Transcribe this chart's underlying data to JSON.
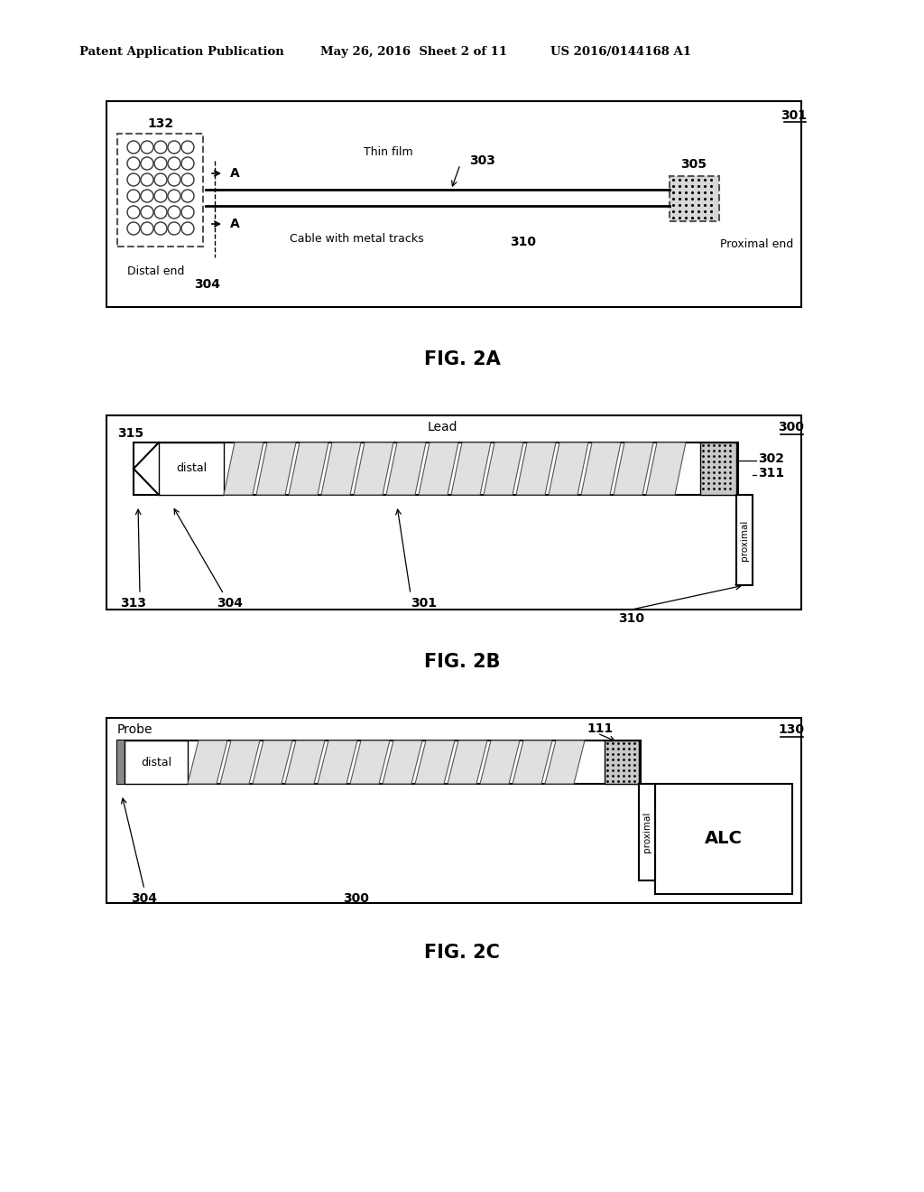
{
  "bg_color": "#ffffff",
  "header_left": "Patent Application Publication",
  "header_mid": "May 26, 2016  Sheet 2 of 11",
  "header_right": "US 2016/0144168 A1",
  "fig_2a_label": "FIG. 2A",
  "fig_2b_label": "FIG. 2B",
  "fig_2c_label": "FIG. 2C"
}
